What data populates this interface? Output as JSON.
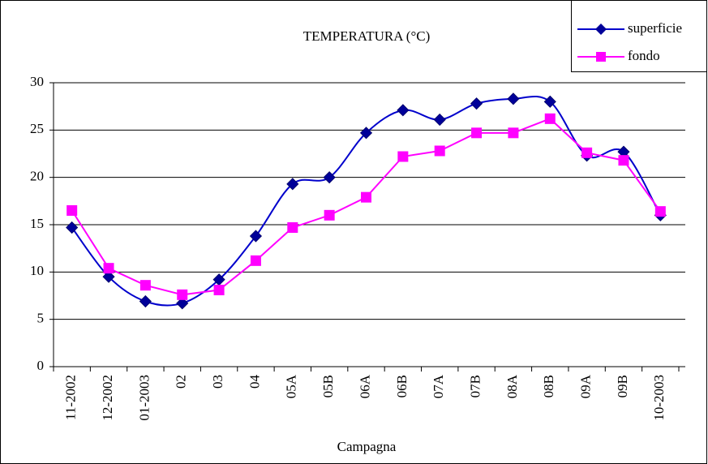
{
  "chart_data": {
    "type": "line",
    "title": "TEMPERATURA (°C)",
    "xlabel": "Campagna",
    "categories": [
      "11-2002",
      "12-2002",
      "01-2003",
      "02",
      "03",
      "04",
      "05A",
      "05B",
      "06A",
      "06B",
      "07A",
      "07B",
      "08A",
      "08B",
      "09A",
      "09B",
      "10-2003"
    ],
    "series": [
      {
        "name": "superficie",
        "color": "#0000CC",
        "marker": "diamond",
        "smooth": true,
        "values": [
          14.7,
          9.5,
          6.9,
          6.7,
          9.2,
          13.8,
          19.3,
          20.0,
          24.7,
          27.1,
          26.1,
          27.8,
          28.3,
          28.0,
          22.3,
          22.7,
          16.0
        ]
      },
      {
        "name": "fondo",
        "color": "#FF00FF",
        "marker": "square",
        "smooth": false,
        "values": [
          16.5,
          10.4,
          8.6,
          7.6,
          8.1,
          11.2,
          14.7,
          16.0,
          17.9,
          22.2,
          22.8,
          24.7,
          24.7,
          26.2,
          22.6,
          21.8,
          16.4
        ]
      }
    ],
    "ylim": [
      0,
      30
    ],
    "yticks": [
      0,
      5,
      10,
      15,
      20,
      25,
      30
    ],
    "grid": true,
    "legend": "top-right"
  }
}
